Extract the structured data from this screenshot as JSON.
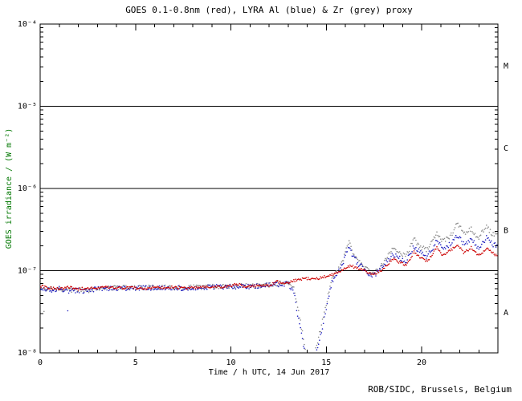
{
  "footer": "ROB/SIDC, Brussels, Belgium",
  "chart_data": {
    "type": "scatter",
    "title": "GOES 0.1-0.8nm (red), LYRA Al (blue) & Zr (grey) proxy",
    "xlabel": "Time / h UTC, 14 Jun 2017",
    "ylabel": "GOES irradiance / (W m⁻²)",
    "xlim": [
      0,
      24
    ],
    "x_major_ticks": [
      0,
      5,
      10,
      15,
      20
    ],
    "x_minor_step": 1,
    "ylog": true,
    "ylim": [
      1e-08,
      0.0001
    ],
    "y_tick_values": [
      1e-08,
      1e-07,
      1e-06,
      1e-05,
      0.0001
    ],
    "y_tick_labels": [
      "10⁻⁸",
      "10⁻⁷",
      "10⁻⁶",
      "10⁻⁵",
      "10⁻⁴"
    ],
    "hlines": [
      1e-07,
      1e-06,
      1e-05
    ],
    "flare_class_labels": [
      {
        "label": "A",
        "y": 3.16e-08
      },
      {
        "label": "B",
        "y": 3.16e-07
      },
      {
        "label": "C",
        "y": 3.16e-06
      },
      {
        "label": "M",
        "y": 3.16e-05
      }
    ],
    "grid": false,
    "legend_position": "in-title",
    "series": [
      {
        "name": "GOES 0.1-0.8nm",
        "color": "#cc0000",
        "noise": 0.03,
        "early_scatter": false,
        "points": [
          [
            0,
            6.5e-08
          ],
          [
            0.5,
            6.2e-08
          ],
          [
            1,
            6e-08
          ],
          [
            1.5,
            6.3e-08
          ],
          [
            2,
            6e-08
          ],
          [
            2.5,
            6.2e-08
          ],
          [
            3,
            6.1e-08
          ],
          [
            3.5,
            6.3e-08
          ],
          [
            4,
            6.1e-08
          ],
          [
            4.5,
            6.2e-08
          ],
          [
            5,
            6.2e-08
          ],
          [
            5.5,
            6e-08
          ],
          [
            6,
            6.3e-08
          ],
          [
            6.5,
            6.2e-08
          ],
          [
            7,
            6.3e-08
          ],
          [
            7.5,
            6.1e-08
          ],
          [
            8,
            6.2e-08
          ],
          [
            8.5,
            6.3e-08
          ],
          [
            9,
            6.4e-08
          ],
          [
            9.5,
            6.3e-08
          ],
          [
            10,
            6.5e-08
          ],
          [
            10.3,
            7e-08
          ],
          [
            10.6,
            6.5e-08
          ],
          [
            11,
            6.5e-08
          ],
          [
            11.5,
            6.6e-08
          ],
          [
            12,
            6.6e-08
          ],
          [
            12.4,
            7.4e-08
          ],
          [
            12.7,
            7e-08
          ],
          [
            13,
            7.2e-08
          ],
          [
            13.5,
            7.8e-08
          ],
          [
            14,
            8e-08
          ],
          [
            14.5,
            8e-08
          ],
          [
            15,
            8.5e-08
          ],
          [
            15.5,
            9.3e-08
          ],
          [
            16,
            1.08e-07
          ],
          [
            16.3,
            1.15e-07
          ],
          [
            16.7,
            1.05e-07
          ],
          [
            17,
            1e-07
          ],
          [
            17.5,
            9e-08
          ],
          [
            18,
            1.05e-07
          ],
          [
            18.5,
            1.4e-07
          ],
          [
            18.8,
            1.28e-07
          ],
          [
            19.2,
            1.15e-07
          ],
          [
            19.6,
            1.7e-07
          ],
          [
            20,
            1.4e-07
          ],
          [
            20.3,
            1.3e-07
          ],
          [
            20.8,
            1.9e-07
          ],
          [
            21.1,
            1.55e-07
          ],
          [
            21.5,
            1.75e-07
          ],
          [
            21.9,
            2.1e-07
          ],
          [
            22.2,
            1.65e-07
          ],
          [
            22.6,
            1.9e-07
          ],
          [
            23,
            1.5e-07
          ],
          [
            23.4,
            1.9e-07
          ],
          [
            23.7,
            1.65e-07
          ],
          [
            24,
            1.5e-07
          ]
        ]
      },
      {
        "name": "LYRA Al proxy",
        "color": "#2020c0",
        "noise": 0.06,
        "early_scatter": true,
        "points": [
          [
            0,
            6.2e-08
          ],
          [
            0.5,
            5.8e-08
          ],
          [
            1,
            6e-08
          ],
          [
            1.5,
            5.7e-08
          ],
          [
            2,
            5.8e-08
          ],
          [
            2.5,
            5.6e-08
          ],
          [
            3,
            6e-08
          ],
          [
            3.5,
            6.1e-08
          ],
          [
            4,
            6.1e-08
          ],
          [
            5,
            6.1e-08
          ],
          [
            6,
            6.2e-08
          ],
          [
            7,
            6.1e-08
          ],
          [
            8,
            6.2e-08
          ],
          [
            9,
            6.3e-08
          ],
          [
            10,
            6.4e-08
          ],
          [
            11,
            6.4e-08
          ],
          [
            12,
            6.6e-08
          ],
          [
            12.5,
            6.8e-08
          ],
          [
            13,
            7e-08
          ],
          [
            13.3,
            5.5e-08
          ],
          [
            13.6,
            2.2e-08
          ],
          [
            13.85,
            1.1e-08
          ],
          [
            14.0,
            6e-09
          ],
          [
            14.2,
            4e-09
          ],
          [
            14.4,
            9e-09
          ],
          [
            14.7,
            1.6e-08
          ],
          [
            15.0,
            3.5e-08
          ],
          [
            15.3,
            7.5e-08
          ],
          [
            15.6,
            9.5e-08
          ],
          [
            15.85,
            1.15e-07
          ],
          [
            16.05,
            1.7e-07
          ],
          [
            16.2,
            2e-07
          ],
          [
            16.4,
            1.5e-07
          ],
          [
            16.7,
            1.2e-07
          ],
          [
            17,
            1.05e-07
          ],
          [
            17.4,
            8.5e-08
          ],
          [
            17.7,
            9.5e-08
          ],
          [
            18,
            1.15e-07
          ],
          [
            18.5,
            1.6e-07
          ],
          [
            18.8,
            1.45e-07
          ],
          [
            19.2,
            1.3e-07
          ],
          [
            19.6,
            2e-07
          ],
          [
            20,
            1.6e-07
          ],
          [
            20.3,
            1.5e-07
          ],
          [
            20.8,
            2.3e-07
          ],
          [
            21.1,
            1.9e-07
          ],
          [
            21.5,
            2.1e-07
          ],
          [
            21.9,
            2.7e-07
          ],
          [
            22.2,
            2.1e-07
          ],
          [
            22.6,
            2.4e-07
          ],
          [
            23,
            1.9e-07
          ],
          [
            23.4,
            2.5e-07
          ],
          [
            23.7,
            2.1e-07
          ],
          [
            24,
            2e-07
          ]
        ]
      },
      {
        "name": "LYRA Zr proxy",
        "color": "#8a8a8a",
        "noise": 0.06,
        "early_scatter": true,
        "points": [
          [
            0,
            6.3e-08
          ],
          [
            0.5,
            5.9e-08
          ],
          [
            1,
            6.1e-08
          ],
          [
            1.5,
            5.8e-08
          ],
          [
            2,
            5.9e-08
          ],
          [
            2.5,
            5.7e-08
          ],
          [
            3,
            6.1e-08
          ],
          [
            3.5,
            6.2e-08
          ],
          [
            4,
            6.2e-08
          ],
          [
            5,
            6.2e-08
          ],
          [
            6,
            6.3e-08
          ],
          [
            7,
            6.2e-08
          ],
          [
            8,
            6.3e-08
          ],
          [
            9,
            6.4e-08
          ],
          [
            10,
            6.5e-08
          ],
          [
            11,
            6.5e-08
          ],
          [
            12,
            6.7e-08
          ],
          [
            12.5,
            6.9e-08
          ],
          [
            13,
            7.2e-08
          ],
          [
            13.3,
            6e-08
          ],
          [
            13.6,
            2.8e-08
          ],
          [
            13.85,
            1.3e-08
          ],
          [
            14.0,
            7e-09
          ],
          [
            14.2,
            5e-09
          ],
          [
            14.4,
            1e-08
          ],
          [
            14.7,
            1.9e-08
          ],
          [
            15.0,
            4e-08
          ],
          [
            15.3,
            8e-08
          ],
          [
            15.6,
            1e-07
          ],
          [
            15.85,
            1.25e-07
          ],
          [
            16.05,
            1.9e-07
          ],
          [
            16.2,
            2.2e-07
          ],
          [
            16.4,
            1.65e-07
          ],
          [
            16.7,
            1.3e-07
          ],
          [
            17,
            1.1e-07
          ],
          [
            17.4,
            9e-08
          ],
          [
            17.7,
            1e-07
          ],
          [
            18,
            1.25e-07
          ],
          [
            18.5,
            1.85e-07
          ],
          [
            18.8,
            1.7e-07
          ],
          [
            19.2,
            1.5e-07
          ],
          [
            19.6,
            2.4e-07
          ],
          [
            20,
            1.9e-07
          ],
          [
            20.3,
            1.8e-07
          ],
          [
            20.8,
            2.8e-07
          ],
          [
            21.1,
            2.3e-07
          ],
          [
            21.5,
            2.6e-07
          ],
          [
            21.9,
            3.8e-07
          ],
          [
            22.2,
            2.8e-07
          ],
          [
            22.6,
            3.2e-07
          ],
          [
            23,
            2.5e-07
          ],
          [
            23.4,
            3.5e-07
          ],
          [
            23.7,
            2.8e-07
          ],
          [
            24,
            2.6e-07
          ]
        ]
      }
    ]
  }
}
